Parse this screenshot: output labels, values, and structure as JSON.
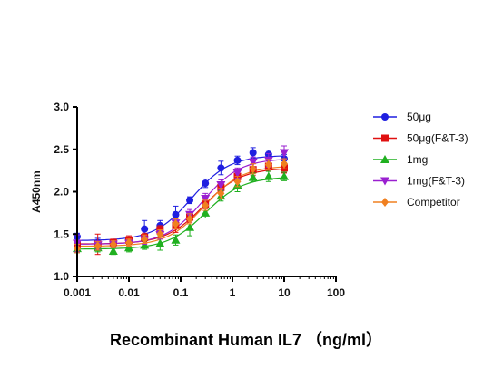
{
  "chart_data": {
    "type": "scatter",
    "xscale": "log",
    "xlim": [
      0.001,
      100
    ],
    "ylim": [
      1.0,
      3.0
    ],
    "xticks": [
      "0.001",
      "0.01",
      "0.1",
      "1",
      "10",
      "100"
    ],
    "yticks": [
      "1.0",
      "1.5",
      "2.0",
      "2.5",
      "3.0"
    ],
    "xlabel": "Recombinant Human IL7 （ng/ml）",
    "ylabel": "A450nm",
    "legend_position": "right",
    "x": [
      0.001,
      0.0025,
      0.005,
      0.01,
      0.02,
      0.04,
      0.08,
      0.15,
      0.3,
      0.6,
      1.25,
      2.5,
      5,
      10
    ],
    "series": [
      {
        "name": "50μg",
        "color": "#1f1fe0",
        "marker": "circle",
        "values": [
          1.47,
          1.4,
          1.4,
          1.42,
          1.56,
          1.6,
          1.73,
          1.9,
          2.1,
          2.28,
          2.37,
          2.46,
          2.44,
          2.39
        ],
        "errors": [
          0.04,
          0.05,
          0.03,
          0.04,
          0.1,
          0.06,
          0.1,
          0.04,
          0.05,
          0.08,
          0.05,
          0.06,
          0.05,
          0.05
        ]
      },
      {
        "name": "50μg(F&T-3)",
        "color": "#e01010",
        "marker": "square",
        "values": [
          1.37,
          1.38,
          1.4,
          1.43,
          1.46,
          1.55,
          1.6,
          1.7,
          1.85,
          2.05,
          2.18,
          2.26,
          2.3,
          2.28
        ],
        "errors": [
          0.05,
          0.12,
          0.04,
          0.05,
          0.05,
          0.05,
          0.08,
          0.06,
          0.05,
          0.05,
          0.06,
          0.07,
          0.06,
          0.06
        ]
      },
      {
        "name": "1mg",
        "color": "#20b020",
        "marker": "triangle-up",
        "values": [
          1.33,
          1.34,
          1.3,
          1.34,
          1.37,
          1.39,
          1.43,
          1.58,
          1.75,
          1.95,
          2.08,
          2.17,
          2.18,
          2.18
        ],
        "errors": [
          0.05,
          0.05,
          0.04,
          0.05,
          0.05,
          0.08,
          0.06,
          0.1,
          0.06,
          0.06,
          0.08,
          0.05,
          0.06,
          0.05
        ]
      },
      {
        "name": "1mg(F&T-3)",
        "color": "#9a20d0",
        "marker": "triangle-down",
        "values": [
          1.39,
          1.37,
          1.38,
          1.39,
          1.43,
          1.49,
          1.63,
          1.73,
          1.92,
          2.08,
          2.22,
          2.35,
          2.37,
          2.46
        ],
        "errors": [
          0.1,
          0.05,
          0.04,
          0.04,
          0.05,
          0.05,
          0.06,
          0.06,
          0.06,
          0.06,
          0.06,
          0.06,
          0.08,
          0.08
        ]
      },
      {
        "name": "Competitor",
        "color": "#f08020",
        "marker": "diamond",
        "values": [
          1.33,
          1.36,
          1.38,
          1.4,
          1.44,
          1.5,
          1.62,
          1.68,
          1.84,
          1.98,
          2.12,
          2.27,
          2.32,
          2.33
        ],
        "errors": [
          0.05,
          0.05,
          0.04,
          0.04,
          0.05,
          0.05,
          0.06,
          0.06,
          0.06,
          0.06,
          0.06,
          0.06,
          0.06,
          0.06
        ]
      }
    ]
  }
}
